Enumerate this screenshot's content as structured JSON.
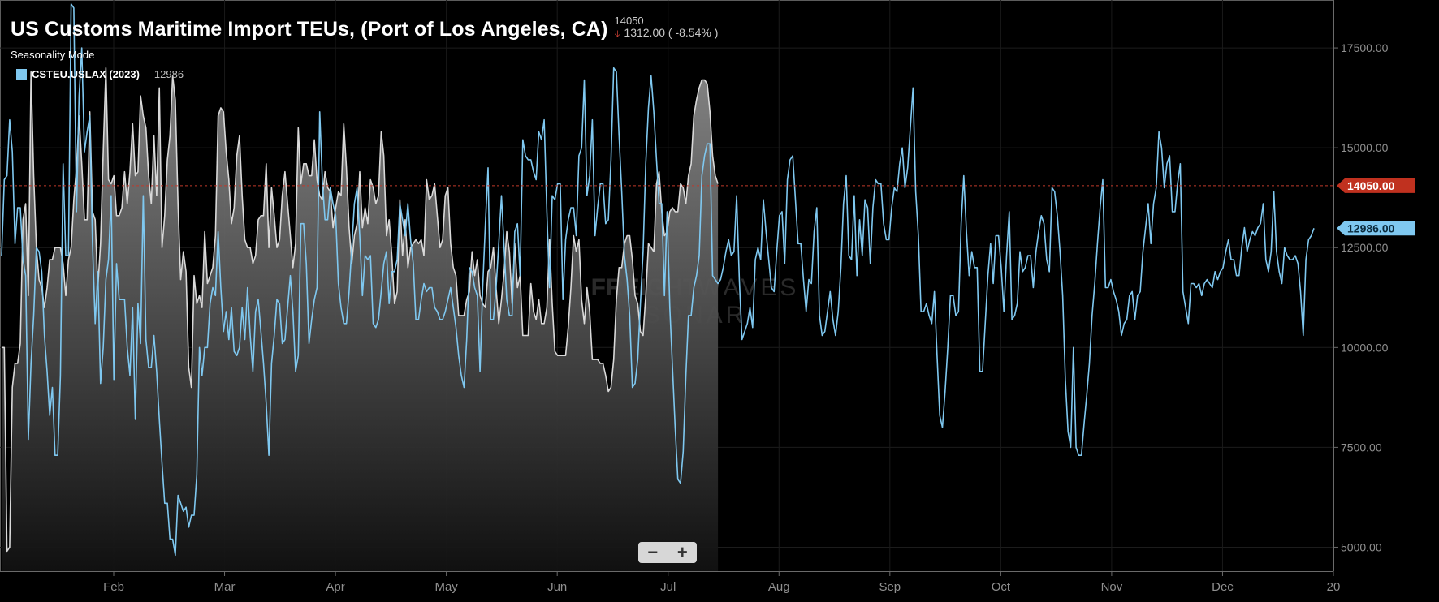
{
  "header": {
    "title": "US Customs Maritime Import TEUs, (Port of Los Angeles, CA)",
    "last_value": "14050",
    "change": "1312.00 ( -8.54% )",
    "mode": "Seasonality Mode"
  },
  "legend": {
    "name": "CSTEU.USLAX (2023)",
    "value": "12986"
  },
  "watermark": {
    "line1_bold": "FREIGHT",
    "line1_light": "WAVES",
    "line2": "SONAR"
  },
  "zoom": {
    "out_label": "−",
    "in_label": "+"
  },
  "colors": {
    "background": "#000000",
    "series_current": "#7fc8f0",
    "series_prior": "#d9d9d9",
    "reference_line": "#c0392b"
  },
  "chart_data": {
    "type": "line",
    "xaxis": [
      "Feb",
      "Mar",
      "Apr",
      "May",
      "Jun",
      "Jul",
      "Aug",
      "Sep",
      "Oct",
      "Nov",
      "Dec",
      "20"
    ],
    "yaxis_ticks": [
      "17500.00",
      "15000.00",
      "12500.00",
      "10000.00",
      "7500.00",
      "5000.00"
    ],
    "ylim": [
      4400,
      18700
    ],
    "reference_value": 14050,
    "reference_label": "14050.00",
    "current_value_label": "12986.00",
    "current_value": 12986,
    "series": [
      {
        "name": "CSTEU.USLAX (2023)",
        "style": "line",
        "values": [
          12300,
          14200,
          14300,
          15700,
          14900,
          12600,
          13500,
          13500,
          12200,
          11800,
          7700,
          9600,
          10800,
          12500,
          12400,
          11900,
          10300,
          9400,
          8300,
          9000,
          7300,
          7300,
          9300,
          14600,
          12300,
          12300,
          18600,
          18500,
          13400,
          16300,
          17500,
          14900,
          15400,
          15800,
          12600,
          10600,
          11900,
          9100,
          10000,
          11700,
          12200,
          13800,
          9200,
          12100,
          11200,
          11200,
          11200,
          10000,
          9300,
          11000,
          8200,
          11100,
          10100,
          13800,
          10200,
          9500,
          9500,
          10300,
          9400,
          8200,
          7100,
          6100,
          6100,
          5200,
          5200,
          4800,
          6300,
          6100,
          5900,
          6000,
          5500,
          5800,
          5800,
          6800,
          10000,
          9300,
          10000,
          10000,
          11100,
          11500,
          11300,
          12900,
          11500,
          10400,
          10900,
          10200,
          11000,
          9900,
          9800,
          10000,
          11000,
          10200,
          11500,
          10300,
          9400,
          10900,
          11200,
          10400,
          9600,
          8600,
          7300,
          9600,
          10300,
          11200,
          11100,
          10100,
          10200,
          11000,
          11800,
          10900,
          9400,
          9800,
          13100,
          13100,
          12100,
          10100,
          10700,
          11200,
          11500,
          15900,
          14200,
          13200,
          13200,
          14000,
          13600,
          13300,
          11600,
          11000,
          10600,
          10600,
          11400,
          12500,
          13600,
          14000,
          12800,
          11300,
          12300,
          12200,
          12300,
          10600,
          10500,
          10700,
          11400,
          12100,
          12400,
          11100,
          11900,
          11900,
          12200,
          13600,
          13200,
          12800,
          13600,
          12700,
          12100,
          10700,
          10700,
          11200,
          11600,
          11400,
          11500,
          11500,
          11000,
          10900,
          10700,
          10700,
          10900,
          11200,
          11500,
          11000,
          10500,
          9800,
          9300,
          9000,
          10200,
          12000,
          11900,
          11500,
          11300,
          9400,
          11500,
          13100,
          14500,
          10700,
          10700,
          11500,
          12600,
          13800,
          12500,
          11200,
          10800,
          10800,
          12900,
          13100,
          11800,
          15200,
          14800,
          14700,
          14700,
          14400,
          14200,
          15400,
          15200,
          15700,
          13400,
          11500,
          13800,
          13700,
          14100,
          14100,
          11200,
          12700,
          13200,
          13500,
          13500,
          12800,
          14800,
          15000,
          16700,
          13800,
          14300,
          15700,
          12800,
          13500,
          14100,
          14100,
          13100,
          13200,
          14700,
          17000,
          16900,
          15300,
          13900,
          12300,
          11700,
          10800,
          9000,
          9100,
          9700,
          11100,
          12400,
          14600,
          16000,
          16800,
          15900,
          14700,
          13600,
          13600,
          11300,
          13400,
          11000,
          9500,
          8000,
          6700,
          6600,
          7400,
          9300,
          10800,
          10800,
          11500,
          11800,
          12300,
          14300,
          14800,
          15100,
          15100,
          11800,
          11700,
          11600,
          11700,
          12000,
          12400,
          12700,
          12300,
          12400,
          13800,
          11700,
          10200,
          10400,
          10600,
          11000,
          10500,
          12200,
          12500,
          12200,
          13700,
          12900,
          12200,
          11500,
          11400,
          12400,
          13300,
          13400,
          12100,
          14200,
          14700,
          14800,
          13700,
          12600,
          12600,
          11700,
          10900,
          11700,
          11600,
          12900,
          13500,
          10800,
          10300,
          10400,
          10900,
          11400,
          10700,
          10300,
          10900,
          12000,
          13600,
          14300,
          12300,
          12200,
          13800,
          11800,
          13200,
          12300,
          13700,
          13500,
          12100,
          13500,
          14200,
          14100,
          14100,
          13100,
          12700,
          12700,
          13500,
          14000,
          13900,
          14600,
          15000,
          14000,
          14500,
          15500,
          16500,
          13900,
          12800,
          10900,
          10900,
          11100,
          10800,
          10600,
          11400,
          9800,
          8300,
          8000,
          8900,
          10000,
          11300,
          11300,
          10800,
          10900,
          13100,
          14300,
          12900,
          11800,
          12400,
          12000,
          12000,
          9400,
          9400,
          10600,
          11800,
          12600,
          11600,
          12800,
          12800,
          12000,
          10900,
          12300,
          13400,
          10700,
          10800,
          11100,
          12400,
          11900,
          12000,
          12300,
          12300,
          11500,
          12400,
          12900,
          13300,
          13100,
          12200,
          11900,
          14000,
          13900,
          13300,
          12400,
          11300,
          9200,
          7900,
          7500,
          10000,
          7500,
          7300,
          7300,
          8100,
          8800,
          9600,
          10800,
          11600,
          12600,
          13500,
          14200,
          11500,
          11500,
          11700,
          11400,
          11200,
          10900,
          10300,
          10600,
          10700,
          11300,
          11400,
          10700,
          11300,
          11400,
          12400,
          13000,
          13600,
          12600,
          13600,
          14000,
          15400,
          15000,
          14000,
          14600,
          14800,
          13400,
          13400,
          14100,
          14600,
          11400,
          11000,
          10600,
          11600,
          11600,
          11500,
          11600,
          11300,
          11600,
          11700,
          11600,
          11500,
          11900,
          11700,
          11900,
          12000,
          12400,
          12700,
          12200,
          12200,
          11800,
          11800,
          12500,
          13000,
          12400,
          12700,
          12900,
          12800,
          13000,
          13100,
          13600,
          12200,
          11900,
          12400,
          13900,
          12400,
          11900,
          11600,
          12500,
          12300,
          12200,
          12200,
          12300,
          12100,
          11400,
          10300,
          12200,
          12700,
          12800,
          12986
        ]
      },
      {
        "name": "",
        "style": "area",
        "values": [
          10000,
          10000,
          4900,
          5000,
          9000,
          9600,
          9600,
          10100,
          13200,
          13600,
          11300,
          16900,
          14300,
          12500,
          11700,
          11500,
          11000,
          11500,
          12200,
          12200,
          12500,
          12500,
          12500,
          12100,
          11300,
          12200,
          12500,
          13700,
          14500,
          15800,
          14600,
          13200,
          13200,
          15900,
          13400,
          13200,
          11500,
          12600,
          14900,
          17000,
          14200,
          14100,
          14300,
          13300,
          13300,
          13500,
          14400,
          13600,
          14400,
          15600,
          14300,
          14400,
          16300,
          15800,
          15500,
          14300,
          13600,
          15300,
          13800,
          16500,
          12500,
          13300,
          14700,
          15300,
          16800,
          16200,
          13600,
          11700,
          12400,
          11900,
          9500,
          9000,
          11800,
          11100,
          11300,
          11000,
          12900,
          11600,
          11800,
          12000,
          12800,
          15800,
          16000,
          15900,
          14900,
          14200,
          13100,
          13500,
          14800,
          15300,
          13800,
          12700,
          12500,
          12500,
          12100,
          12300,
          13200,
          13300,
          13300,
          14600,
          12500,
          14000,
          13300,
          12500,
          12700,
          13800,
          14400,
          13600,
          12800,
          12000,
          12600,
          15500,
          14100,
          14600,
          14600,
          14300,
          14300,
          15200,
          14200,
          13800,
          13700,
          14400,
          14000,
          13900,
          13000,
          13500,
          13900,
          13800,
          15600,
          14500,
          13000,
          12100,
          12800,
          13100,
          14400,
          13000,
          13500,
          13100,
          14200,
          14000,
          13600,
          13800,
          15400,
          14800,
          12800,
          13200,
          12300,
          11100,
          11400,
          13700,
          12300,
          13200,
          12000,
          12500,
          12600,
          12700,
          12600,
          12700,
          12300,
          14200,
          13700,
          13800,
          14100,
          13300,
          12500,
          12700,
          13800,
          14000,
          12600,
          12000,
          11800,
          10800,
          10800,
          10800,
          11200,
          11400,
          12400,
          11800,
          12200,
          11300,
          11100,
          11000,
          11900,
          12000,
          12500,
          11500,
          10600,
          11200,
          11900,
          12900,
          12400,
          11100,
          12600,
          11500,
          11800,
          10300,
          10300,
          10300,
          11600,
          10900,
          10700,
          11200,
          10600,
          10600,
          11000,
          12700,
          11100,
          9900,
          9800,
          9800,
          9800,
          9800,
          10500,
          11500,
          12800,
          12400,
          12700,
          11200,
          10600,
          11500,
          10900,
          9700,
          9700,
          9700,
          9600,
          9600,
          9300,
          8900,
          9000,
          9700,
          11200,
          12000,
          12000,
          12600,
          12800,
          12800,
          12200,
          11300,
          11100,
          10400,
          10300,
          11300,
          12600,
          12500,
          12400,
          14100,
          14400,
          13400,
          12800,
          12900,
          13400,
          13500,
          13400,
          13400,
          14100,
          14000,
          13600,
          14300,
          14600,
          15800,
          16200,
          16500,
          16700,
          16700,
          16600,
          15900,
          14800,
          14300,
          14100
        ]
      }
    ]
  }
}
